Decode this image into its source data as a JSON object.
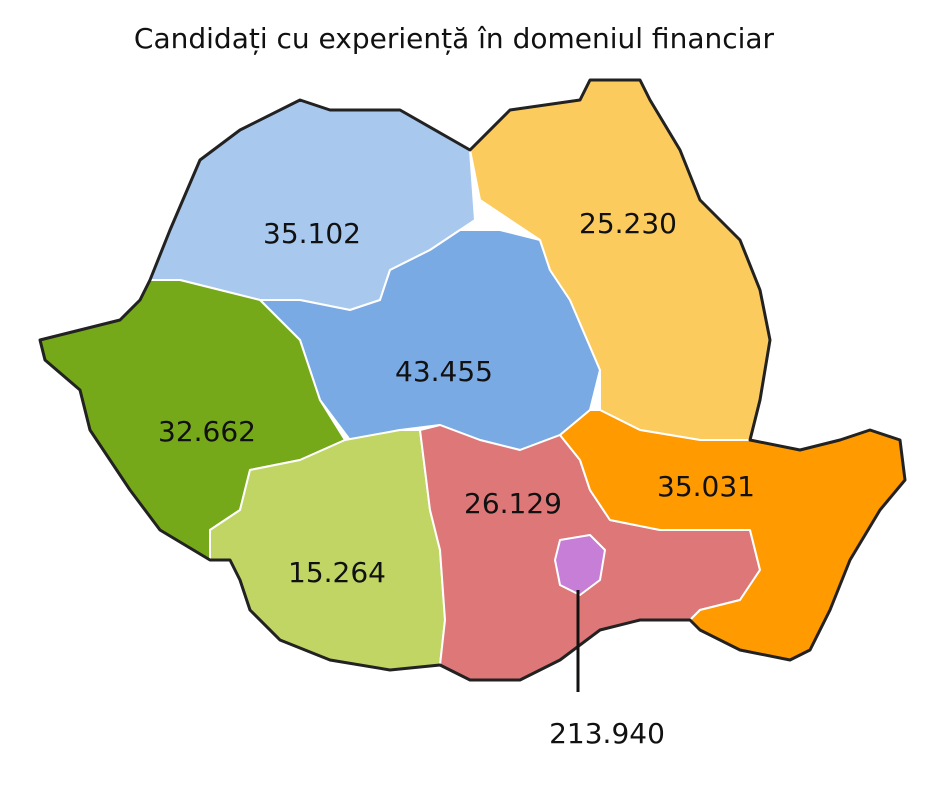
{
  "title": "Candidați cu experiență în domeniul financiar",
  "regions": [
    {
      "label": "35.102"
    },
    {
      "label": "25.230"
    },
    {
      "label": "43.455"
    },
    {
      "label": "32.662"
    },
    {
      "label": "35.031"
    },
    {
      "label": "26.129"
    },
    {
      "label": "15.264"
    },
    {
      "label": "213.940"
    }
  ]
}
